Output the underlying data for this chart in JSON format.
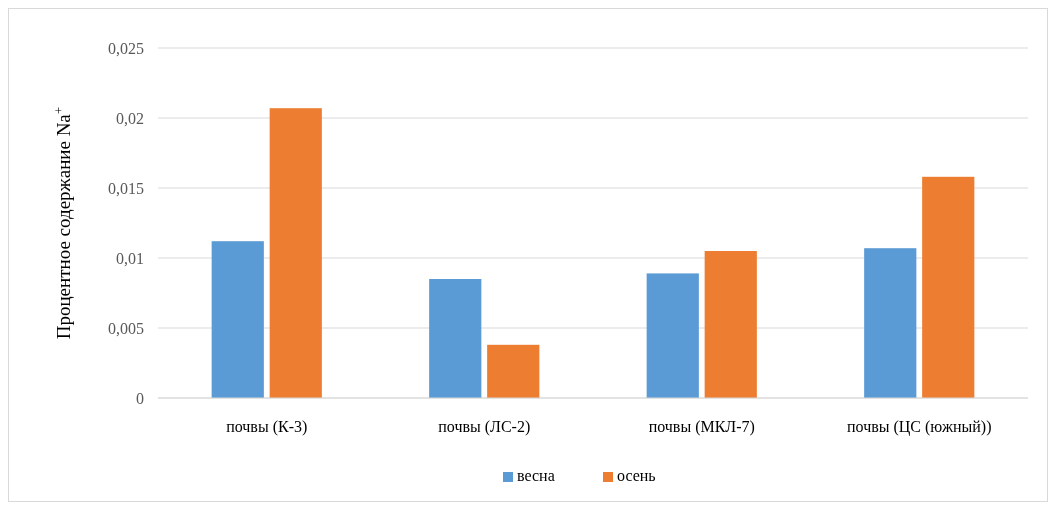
{
  "chart_data": {
    "type": "bar",
    "ylabel": "Процентное содержание Na$^{+}$",
    "categories": [
      "почвы (К-3)",
      "почвы (ЛС-2)",
      "почвы (МКЛ-7)",
      "почвы (ЦС (южный))"
    ],
    "series": [
      {
        "name": "весна",
        "color": "#5b9bd5",
        "values": [
          0.0112,
          0.0085,
          0.0089,
          0.0107
        ]
      },
      {
        "name": "осень",
        "color": "#ed7d31",
        "values": [
          0.0207,
          0.0038,
          0.0105,
          0.0158
        ]
      }
    ],
    "ylim": [
      0,
      0.025
    ],
    "yticks": [
      {
        "value": 0,
        "label": "0"
      },
      {
        "value": 0.005,
        "label": "0,005"
      },
      {
        "value": 0.01,
        "label": "0,01"
      },
      {
        "value": 0.015,
        "label": "0,015"
      },
      {
        "value": 0.02,
        "label": "0,02"
      },
      {
        "value": 0.025,
        "label": "0,025"
      }
    ],
    "grid": "y",
    "legend": "bottom"
  }
}
